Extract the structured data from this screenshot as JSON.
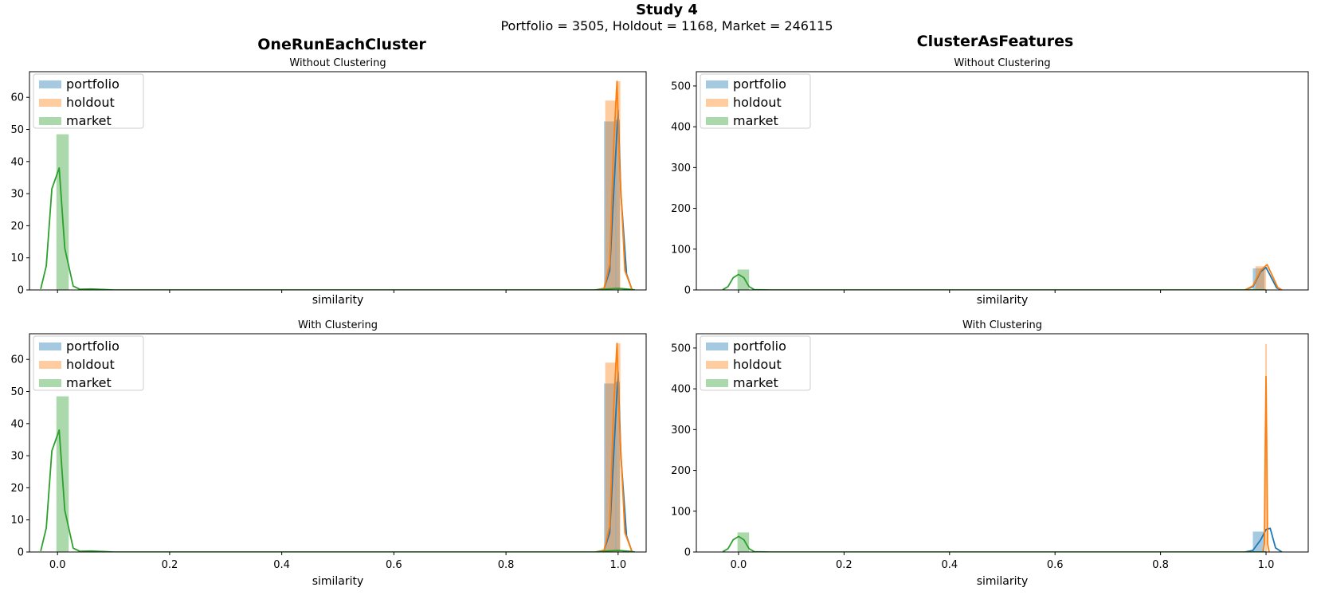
{
  "figure": {
    "suptitle": "Study 4",
    "subtitle": "Portfolio = 3505, Holdout = 1168, Market = 246115",
    "left_column_title": "OneRunEachCluster",
    "right_column_title": "ClusterAsFeatures"
  },
  "colors": {
    "portfolio": "#1f77b4",
    "holdout": "#ff7f0e",
    "market": "#2ca02c"
  },
  "chart_data": [
    {
      "type": "bar",
      "title": "Without Clustering",
      "xlabel": "similarity",
      "show_x_ticklabels": false,
      "xlim": [
        -0.05,
        1.05
      ],
      "ylim": [
        0,
        68
      ],
      "yticks": [
        0,
        10,
        20,
        30,
        40,
        50,
        60
      ],
      "xticks": [
        0.0,
        0.2,
        0.4,
        0.6,
        0.8,
        1.0
      ],
      "legend": {
        "position": "top-left",
        "entries": [
          "portfolio",
          "holdout",
          "market"
        ]
      },
      "bars": [
        {
          "series": "market",
          "x0": -0.002,
          "x1": 0.02,
          "value": 48.5
        },
        {
          "series": "portfolio",
          "x0": 0.975,
          "x1": 0.995,
          "value": 52.5
        },
        {
          "series": "holdout",
          "x0": 0.977,
          "x1": 0.997,
          "value": 59
        },
        {
          "series": "portfolio",
          "x0": 0.995,
          "x1": 1.003,
          "value": 53
        },
        {
          "series": "holdout",
          "x0": 0.997,
          "x1": 1.004,
          "value": 65
        }
      ],
      "series": [
        {
          "name": "portfolio",
          "x": [
            0.96,
            0.975,
            0.985,
            0.995,
            1.0,
            1.005,
            1.015,
            1.025
          ],
          "y": [
            0,
            0.5,
            6,
            40,
            56,
            30,
            5,
            0
          ]
        },
        {
          "name": "holdout",
          "x": [
            0.96,
            0.975,
            0.985,
            0.992,
            0.998,
            1.003,
            1.012,
            1.025
          ],
          "y": [
            0,
            0.5,
            8,
            45,
            65,
            38,
            6,
            0
          ]
        },
        {
          "name": "market",
          "x": [
            -0.03,
            -0.02,
            -0.01,
            0.003,
            0.013,
            0.028,
            0.04,
            0.06,
            0.1,
            0.96,
            0.98,
            1.0,
            1.02,
            1.03
          ],
          "y": [
            0.3,
            7.5,
            31.5,
            38,
            13,
            1.2,
            0.2,
            0.3,
            0,
            0,
            0.3,
            0.5,
            0.2,
            0
          ]
        }
      ]
    },
    {
      "type": "bar",
      "title": "With Clustering",
      "xlabel": "similarity",
      "show_x_ticklabels": true,
      "xlim": [
        -0.05,
        1.05
      ],
      "ylim": [
        0,
        68
      ],
      "yticks": [
        0,
        10,
        20,
        30,
        40,
        50,
        60
      ],
      "xticks": [
        0.0,
        0.2,
        0.4,
        0.6,
        0.8,
        1.0
      ],
      "xticklabels": [
        "0.0",
        "0.2",
        "0.4",
        "0.6",
        "0.8",
        "1.0"
      ],
      "legend": {
        "position": "top-left",
        "entries": [
          "portfolio",
          "holdout",
          "market"
        ]
      },
      "bars": [
        {
          "series": "market",
          "x0": -0.002,
          "x1": 0.02,
          "value": 48.5
        },
        {
          "series": "portfolio",
          "x0": 0.975,
          "x1": 0.995,
          "value": 52.5
        },
        {
          "series": "holdout",
          "x0": 0.977,
          "x1": 0.997,
          "value": 59
        },
        {
          "series": "portfolio",
          "x0": 0.995,
          "x1": 1.003,
          "value": 53
        },
        {
          "series": "holdout",
          "x0": 0.997,
          "x1": 1.004,
          "value": 65
        }
      ],
      "series": [
        {
          "name": "portfolio",
          "x": [
            0.96,
            0.975,
            0.985,
            0.995,
            1.0,
            1.005,
            1.015,
            1.025
          ],
          "y": [
            0,
            0.5,
            6,
            40,
            56,
            30,
            5,
            0
          ]
        },
        {
          "name": "holdout",
          "x": [
            0.96,
            0.975,
            0.985,
            0.992,
            0.998,
            1.003,
            1.012,
            1.025
          ],
          "y": [
            0,
            0.5,
            8,
            45,
            65,
            38,
            6,
            0
          ]
        },
        {
          "name": "market",
          "x": [
            -0.03,
            -0.02,
            -0.01,
            0.003,
            0.013,
            0.028,
            0.04,
            0.06,
            0.1,
            0.96,
            0.98,
            1.0,
            1.02,
            1.03
          ],
          "y": [
            0.3,
            7.5,
            31.5,
            38,
            13,
            1.2,
            0.2,
            0.3,
            0,
            0,
            0.3,
            0.5,
            0.2,
            0
          ]
        }
      ]
    },
    {
      "type": "bar",
      "title": "Without Clustering",
      "xlabel": "similarity",
      "show_x_ticklabels": false,
      "xlim": [
        -0.08,
        1.08
      ],
      "ylim": [
        0,
        535
      ],
      "yticks": [
        0,
        100,
        200,
        300,
        400,
        500
      ],
      "xticks": [
        0.0,
        0.2,
        0.4,
        0.6,
        0.8,
        1.0
      ],
      "legend": {
        "position": "top-left",
        "entries": [
          "portfolio",
          "holdout",
          "market"
        ]
      },
      "bars": [
        {
          "series": "market",
          "x0": -0.002,
          "x1": 0.02,
          "value": 50
        },
        {
          "series": "portfolio",
          "x0": 0.975,
          "x1": 0.997,
          "value": 53
        },
        {
          "series": "holdout",
          "x0": 0.98,
          "x1": 1.0,
          "value": 58
        }
      ],
      "series": [
        {
          "name": "portfolio",
          "x": [
            0.96,
            0.975,
            0.99,
            1.0,
            1.01,
            1.02,
            1.03
          ],
          "y": [
            0,
            8,
            45,
            55,
            30,
            5,
            0
          ]
        },
        {
          "name": "holdout",
          "x": [
            0.96,
            0.975,
            0.99,
            1.002,
            1.012,
            1.022,
            1.03
          ],
          "y": [
            0,
            10,
            48,
            62,
            35,
            6,
            0
          ]
        },
        {
          "name": "market",
          "x": [
            -0.03,
            -0.02,
            -0.01,
            0.0,
            0.01,
            0.02,
            0.03,
            0.06,
            1.0
          ],
          "y": [
            0.5,
            8,
            30,
            38,
            30,
            8,
            0.5,
            0,
            0
          ]
        }
      ]
    },
    {
      "type": "bar",
      "title": "With Clustering",
      "xlabel": "similarity",
      "show_x_ticklabels": true,
      "xlim": [
        -0.08,
        1.08
      ],
      "ylim": [
        0,
        535
      ],
      "yticks": [
        0,
        100,
        200,
        300,
        400,
        500
      ],
      "xticks": [
        0.0,
        0.2,
        0.4,
        0.6,
        0.8,
        1.0
      ],
      "xticklabels": [
        "0.0",
        "0.2",
        "0.4",
        "0.6",
        "0.8",
        "1.0"
      ],
      "legend": {
        "position": "top-left",
        "entries": [
          "portfolio",
          "holdout",
          "market"
        ]
      },
      "bars": [
        {
          "series": "market",
          "x0": -0.002,
          "x1": 0.02,
          "value": 48
        },
        {
          "series": "portfolio",
          "x0": 0.975,
          "x1": 0.997,
          "value": 50
        },
        {
          "series": "holdout",
          "x0": 0.9985,
          "x1": 1.0015,
          "value": 510
        }
      ],
      "series": [
        {
          "name": "portfolio",
          "x": [
            0.96,
            0.975,
            0.99,
            1.0,
            1.008,
            1.018,
            1.03
          ],
          "y": [
            0,
            4,
            30,
            55,
            58,
            10,
            0
          ]
        },
        {
          "name": "holdout",
          "x": [
            0.994,
            0.997,
            0.9985,
            1.0,
            1.0015,
            1.003,
            1.006
          ],
          "y": [
            0,
            20,
            250,
            430,
            250,
            20,
            0
          ]
        },
        {
          "name": "market",
          "x": [
            -0.03,
            -0.02,
            -0.01,
            0.0,
            0.01,
            0.02,
            0.03,
            0.06,
            1.0
          ],
          "y": [
            0.5,
            8,
            30,
            38,
            30,
            8,
            0.5,
            0,
            0
          ]
        }
      ]
    }
  ]
}
